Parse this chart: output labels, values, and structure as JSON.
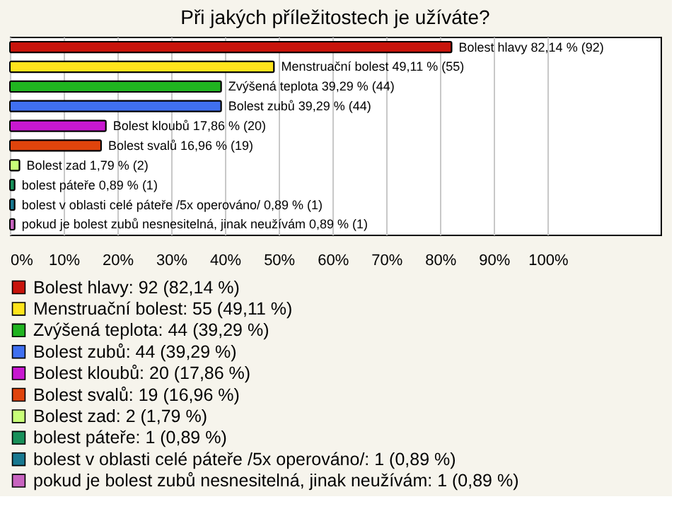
{
  "chart_data": {
    "type": "bar",
    "orientation": "horizontal",
    "stacked": true,
    "title": "Při jakých příležitostech je užíváte?",
    "categories": [
      null,
      null,
      null,
      null,
      null,
      null,
      null,
      null,
      null,
      null
    ],
    "series": [
      {
        "name": "Bolest hlavy: 92 (82,14 %)",
        "color": "#c8140c",
        "values": [
          82.14,
          null,
          null,
          null,
          null,
          null,
          null,
          null,
          null,
          null
        ],
        "value_labels": [
          "Bolest hlavy 82,14 % (92)",
          null,
          null,
          null,
          null,
          null,
          null,
          null,
          null,
          null
        ]
      },
      {
        "name": "Menstruační bolest: 55 (49,11 %)",
        "color": "#ffe41c",
        "values": [
          null,
          49.11,
          null,
          null,
          null,
          null,
          null,
          null,
          null,
          null
        ],
        "value_labels": [
          null,
          "Menstruační bolest 49,11 % (55)",
          null,
          null,
          null,
          null,
          null,
          null,
          null,
          null
        ]
      },
      {
        "name": "Zvýšená teplota: 44 (39,29 %)",
        "color": "#20b420",
        "values": [
          null,
          null,
          39.29,
          null,
          null,
          null,
          null,
          null,
          null,
          null
        ],
        "value_labels": [
          null,
          null,
          "Zvýšená teplota 39,29 % (44)",
          null,
          null,
          null,
          null,
          null,
          null,
          null
        ]
      },
      {
        "name": "Bolest zubů: 44 (39,29 %)",
        "color": "#4070f0",
        "values": [
          null,
          null,
          null,
          39.29,
          null,
          null,
          null,
          null,
          null,
          null
        ],
        "value_labels": [
          null,
          null,
          null,
          "Bolest zubů 39,29 % (44)",
          null,
          null,
          null,
          null,
          null,
          null
        ]
      },
      {
        "name": "Bolest kloubů: 20 (17,86 %)",
        "color": "#c818d0",
        "values": [
          null,
          null,
          null,
          null,
          17.86,
          null,
          null,
          null,
          null,
          null
        ],
        "value_labels": [
          null,
          null,
          null,
          null,
          "Bolest kloubů 17,86 % (20)",
          null,
          null,
          null,
          null,
          null
        ]
      },
      {
        "name": "Bolest svalů: 19 (16,96 %)",
        "color": "#e0440c",
        "values": [
          null,
          null,
          null,
          null,
          null,
          16.96,
          null,
          null,
          null,
          null
        ],
        "value_labels": [
          null,
          null,
          null,
          null,
          null,
          "Bolest svalů 16,96 % (19)",
          null,
          null,
          null,
          null
        ]
      },
      {
        "name": "Bolest zad: 2 (1,79 %)",
        "color": "#c8ff78",
        "values": [
          null,
          null,
          null,
          null,
          null,
          null,
          1.79,
          null,
          null,
          null
        ],
        "value_labels": [
          null,
          null,
          null,
          null,
          null,
          null,
          "Bolest zad 1,79 % (2)",
          null,
          null,
          null
        ]
      },
      {
        "name": "bolest páteře: 1 (0,89 %)",
        "color": "#18905a",
        "values": [
          null,
          null,
          null,
          null,
          null,
          null,
          null,
          0.89,
          null,
          null
        ],
        "value_labels": [
          null,
          null,
          null,
          null,
          null,
          null,
          null,
          "bolest páteře 0,89 % (1)",
          null,
          null
        ]
      },
      {
        "name": "bolest v oblasti celé páteře /5x operováno/: 1 (0,89 %)",
        "color": "#187890",
        "values": [
          null,
          null,
          null,
          null,
          null,
          null,
          null,
          null,
          0.89,
          null
        ],
        "value_labels": [
          null,
          null,
          null,
          null,
          null,
          null,
          null,
          null,
          "bolest v oblasti celé páteře /5x operováno/ 0,89 % (1)",
          null
        ]
      },
      {
        "name": "pokud je bolest zubů nesnesitelná, jinak neužívám: 1 (0,89 %)",
        "color": "#c864c0",
        "values": [
          null,
          null,
          null,
          null,
          null,
          null,
          null,
          null,
          null,
          0.89
        ],
        "value_labels": [
          null,
          null,
          null,
          null,
          null,
          null,
          null,
          null,
          null,
          "pokud je bolest zubů nesnesitelná, jinak neužívám 0,89 % (1)"
        ]
      }
    ],
    "xlim": [
      0,
      121
    ],
    "xticks": [
      {
        "value": 0,
        "label": "0%"
      },
      {
        "value": 10,
        "label": "10%"
      },
      {
        "value": 20,
        "label": "20%"
      },
      {
        "value": 30,
        "label": "30%"
      },
      {
        "value": 40,
        "label": "40%"
      },
      {
        "value": 50,
        "label": "50%"
      },
      {
        "value": 60,
        "label": "60%"
      },
      {
        "value": 70,
        "label": "70%"
      },
      {
        "value": 80,
        "label": "80%"
      },
      {
        "value": 90,
        "label": "90%"
      },
      {
        "value": 100,
        "label": "100%"
      }
    ],
    "grid": "x",
    "legend": "bottom"
  }
}
